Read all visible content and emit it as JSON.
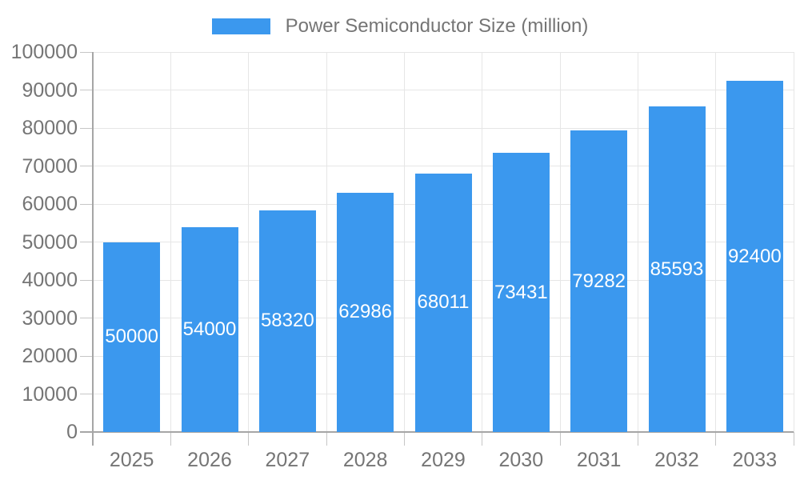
{
  "legend": {
    "label": "Power Semiconductor Size (million)"
  },
  "colors": {
    "bar": "#3b98ee",
    "text": "#757575",
    "grid": "#e6e6e6",
    "tick": "#c6c6c6",
    "axis": "#a6a6a6",
    "value_label": "#ffffff",
    "background": "#ffffff"
  },
  "chart_data": {
    "type": "bar",
    "title": "",
    "legend_position": "top",
    "legend_entries": [
      "Power Semiconductor Size (million)"
    ],
    "categories": [
      "2025",
      "2026",
      "2027",
      "2028",
      "2029",
      "2030",
      "2031",
      "2032",
      "2033"
    ],
    "series": [
      {
        "name": "Power Semiconductor Size (million)",
        "values": [
          50000,
          54000,
          58320,
          62986,
          68011,
          73431,
          79282,
          85593,
          92400
        ]
      }
    ],
    "xlabel": "",
    "ylabel": "",
    "ylim": [
      0,
      100000
    ],
    "yticks": [
      0,
      10000,
      20000,
      30000,
      40000,
      50000,
      60000,
      70000,
      80000,
      90000,
      100000
    ],
    "grid": true,
    "bar_value_labels": true
  }
}
